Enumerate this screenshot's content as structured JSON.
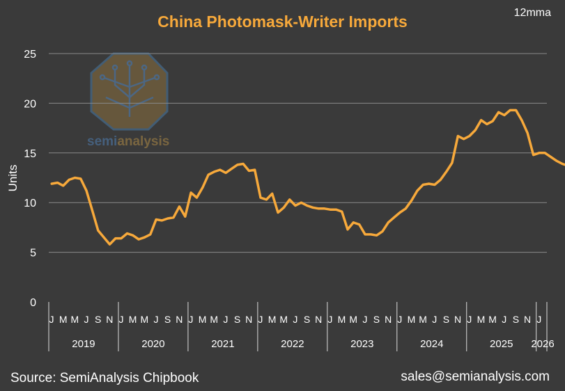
{
  "title": "China Photomask-Writer Imports",
  "note": "12mma",
  "footer": {
    "source": "Source: SemiAnalysis Chipbook",
    "contact": "sales@semianalysis.com"
  },
  "watermark": {
    "text_a": "semi",
    "text_b": "analysis",
    "icon": "tree-circuit-logo"
  },
  "colors": {
    "background": "#3a3a3a",
    "line": "#f7a93b",
    "grid": "#8a8a8a",
    "text": "#ffffff"
  },
  "chart_data": {
    "type": "line",
    "title": "China Photomask-Writer Imports",
    "ylabel": "Units",
    "xlabel": "",
    "ylim": [
      0,
      25
    ],
    "yticks": [
      0,
      5,
      10,
      15,
      20,
      25
    ],
    "grid": true,
    "x_month_labels": [
      "J",
      "M",
      "M",
      "J",
      "S",
      "N"
    ],
    "years": [
      "2019",
      "2020",
      "2021",
      "2022",
      "2023",
      "2024",
      "2025",
      "2026"
    ],
    "start": "2019-01",
    "series": [
      {
        "values": [
          11.9,
          12.0,
          11.7,
          12.3,
          12.5,
          12.4,
          11.2,
          9.2,
          7.2,
          6.5,
          5.8,
          6.4,
          6.4,
          6.9,
          6.7,
          6.3,
          6.5,
          6.8,
          8.3,
          8.2,
          8.4,
          8.5,
          9.6,
          8.6,
          11.0,
          10.5,
          11.5,
          12.8,
          13.1,
          13.3,
          13.0,
          13.4,
          13.8,
          13.9,
          13.2,
          13.3,
          10.5,
          10.3,
          10.9,
          9.0,
          9.5,
          10.3,
          9.7,
          10.0,
          9.7,
          9.5,
          9.4,
          9.4,
          9.3,
          9.3,
          9.1,
          7.3,
          8.0,
          7.8,
          6.8,
          6.8,
          6.7,
          7.1,
          8.0,
          8.5,
          9.0,
          9.4,
          10.2,
          11.2,
          11.8,
          11.9,
          11.8,
          12.3,
          13.1,
          14.0,
          16.7,
          16.4,
          16.7,
          17.3,
          18.3,
          17.9,
          18.2,
          19.1,
          18.8,
          19.3,
          19.3,
          18.3,
          17.0,
          14.8,
          15.0,
          15.0,
          14.6,
          14.2,
          13.9,
          13.7
        ]
      }
    ]
  }
}
